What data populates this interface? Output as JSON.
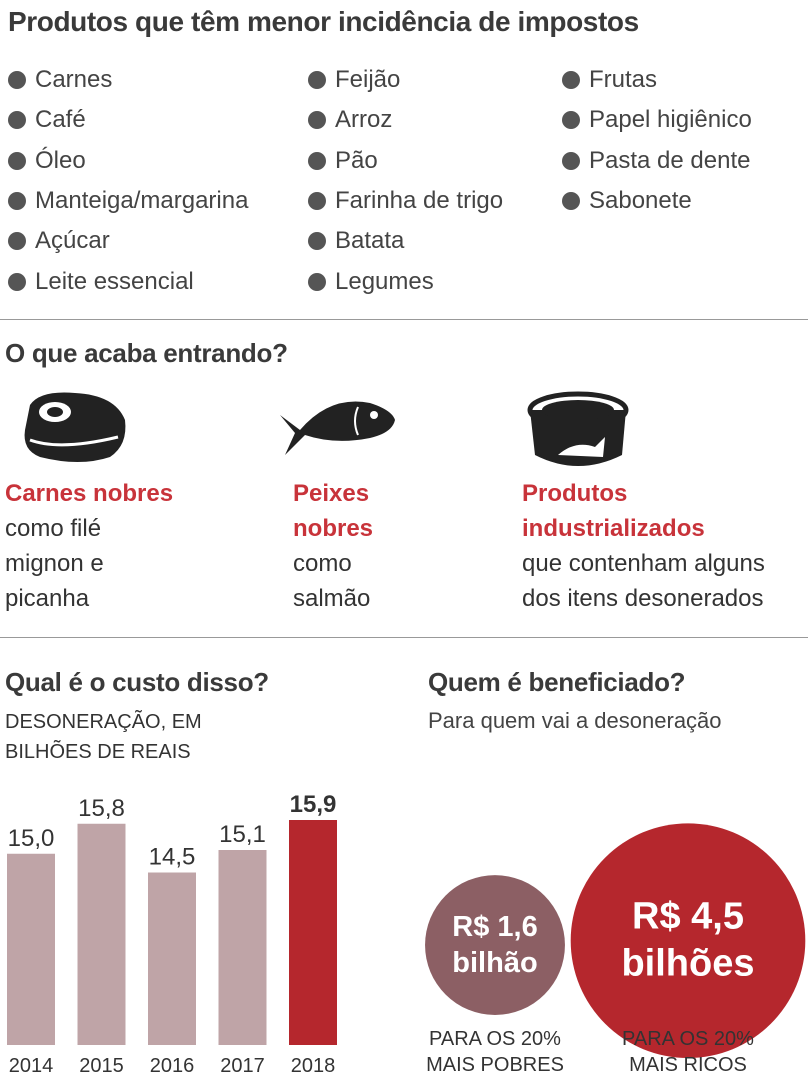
{
  "header": {
    "title": "Produtos que têm menor incidência de impostos"
  },
  "products": {
    "columns": [
      [
        "Carnes",
        "Café",
        "Óleo",
        "Manteiga/margarina",
        "Açúcar",
        "Leite essencial"
      ],
      [
        "Feijão",
        "Arroz",
        "Pão",
        "Farinha de trigo",
        "Batata",
        "Legumes"
      ],
      [
        "Frutas",
        "Papel higiênico",
        "Pasta de dente",
        "Sabonete"
      ]
    ]
  },
  "section2": {
    "title": "O que acaba entrando?",
    "items": [
      {
        "title": "Carnes nobres",
        "text": "como filé mignon e picanha"
      },
      {
        "title": "Peixes nobres",
        "text": "como salmão"
      },
      {
        "title": "Produtos industrializados",
        "text": "que contenham alguns dos itens desonerados"
      }
    ]
  },
  "chart_data": [
    {
      "type": "bar",
      "title": "Qual é o custo disso?",
      "subtitle": "DESONERAÇÃO, EM BILHÕES DE REAIS",
      "categories": [
        "2014",
        "2015",
        "2016",
        "2017",
        "2018"
      ],
      "values": [
        15.0,
        15.8,
        14.5,
        15.1,
        15.9
      ],
      "value_labels": [
        "15,0",
        "15,8",
        "14,5",
        "15,1",
        "15,9"
      ],
      "colors": [
        "#bfa4a7",
        "#bfa4a7",
        "#bfa4a7",
        "#bfa4a7",
        "#b5272d"
      ],
      "highlight": [
        false,
        false,
        false,
        false,
        true
      ],
      "ylim": [
        9.9,
        16.3
      ]
    },
    {
      "type": "bubble",
      "title": "Quem é beneficiado?",
      "subtitle": "Para quem vai a desoneração",
      "categories": [
        "PARA OS 20% MAIS POBRES",
        "PARA OS 20% MAIS RICOS"
      ],
      "values": [
        1.6,
        4.5
      ],
      "value_labels": [
        "R$ 1,6 bilhão",
        "R$ 4,5 bilhões"
      ],
      "colors": [
        "#8c5f64",
        "#b5272d"
      ]
    }
  ]
}
